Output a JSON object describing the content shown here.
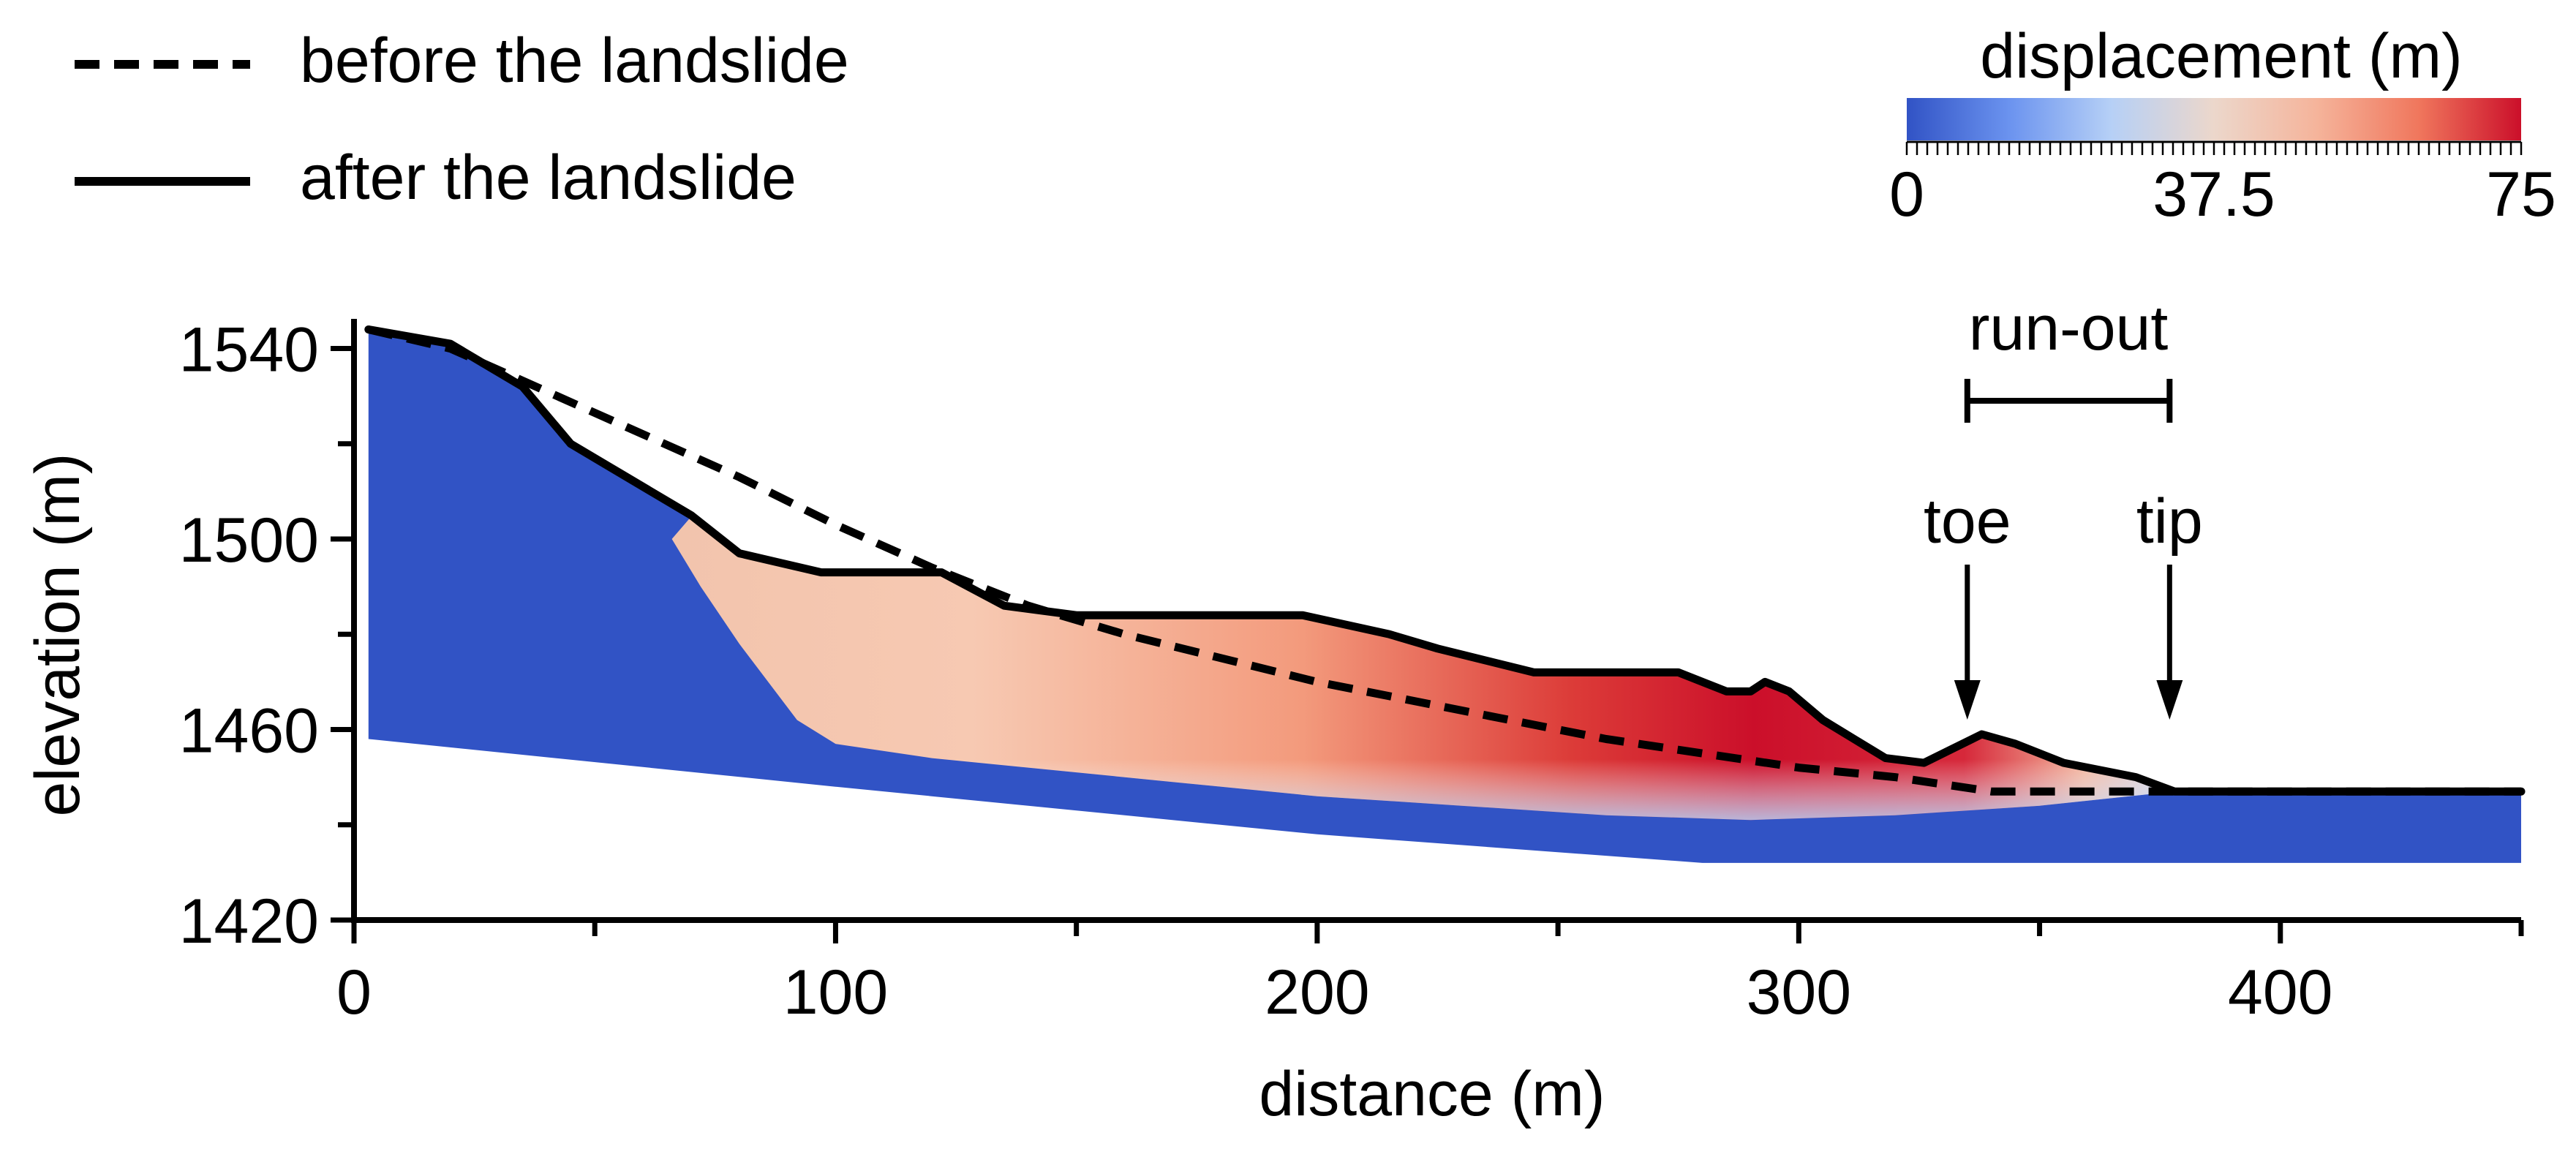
{
  "chart_data": {
    "type": "line",
    "title": "",
    "xlabel": "distance (m)",
    "ylabel": "elevation (m)",
    "xlim": [
      0,
      450
    ],
    "ylim": [
      1420,
      1545
    ],
    "x_ticks": [
      0,
      100,
      200,
      300,
      400
    ],
    "x_tick_labels": [
      "0",
      "100",
      "200",
      "300",
      "400"
    ],
    "x_minor_ticks": [
      50,
      150,
      250,
      350,
      450
    ],
    "y_ticks": [
      1420,
      1460,
      1500,
      1540
    ],
    "y_tick_labels": [
      "1420",
      "1460",
      "1500",
      "1540"
    ],
    "y_minor_ticks": [
      1440,
      1480,
      1520
    ],
    "grid": false,
    "legend_position": "top-left",
    "series": [
      {
        "name": "before the landslide",
        "style": "dashed",
        "color": "#000000",
        "x": [
          3,
          20,
          40,
          60,
          80,
          100,
          120,
          140,
          160,
          180,
          200,
          220,
          240,
          260,
          280,
          300,
          320,
          340,
          360,
          380,
          400,
          420,
          450
        ],
        "y": [
          1544,
          1540,
          1531,
          1522,
          1513,
          1503,
          1494,
          1486,
          1480,
          1475,
          1470,
          1466,
          1462,
          1458,
          1455,
          1452,
          1450,
          1447,
          1447,
          1447,
          1447,
          1447,
          1447
        ]
      },
      {
        "name": "after the landslide",
        "style": "solid",
        "color": "#000000",
        "x": [
          3,
          20,
          35,
          45,
          55,
          70,
          80,
          97,
          122,
          135,
          150,
          170,
          197,
          215,
          225,
          245,
          275,
          280,
          285,
          290,
          293,
          298,
          305,
          318,
          326,
          338,
          345,
          355,
          370,
          378,
          390,
          450
        ],
        "y": [
          1544,
          1541,
          1532,
          1520,
          1514,
          1505,
          1497,
          1493,
          1493,
          1486,
          1484,
          1484,
          1484,
          1480,
          1477,
          1472,
          1472,
          1470,
          1468,
          1468,
          1470,
          1468,
          1462,
          1454,
          1453,
          1459,
          1457,
          1453,
          1450,
          1447,
          1447,
          1447
        ]
      }
    ],
    "colorbar": {
      "title": "displacement (m)",
      "min": 0,
      "max": 75,
      "tick_values": [
        0,
        37.5,
        75
      ],
      "tick_labels": [
        "0",
        "37.5",
        "75"
      ],
      "colormap": [
        "#3153c5",
        "#6b93ef",
        "#b6d0f6",
        "#ecd7cb",
        "#f5b49b",
        "#f0775d",
        "#cb0f2a"
      ]
    },
    "displacement_field": {
      "stable_color": "#3153c5",
      "slide_zone": {
        "x_range": [
          80,
          378
        ],
        "peak_displacement_m": 75,
        "peak_location_x": 280
      },
      "domain_bottom": {
        "x": [
          3,
          100,
          200,
          280,
          400,
          450
        ],
        "y": [
          1458,
          1448,
          1438,
          1432,
          1432,
          1432
        ]
      }
    },
    "annotations": {
      "run_out_label": "run-out",
      "run_out_range_x": [
        335,
        377
      ],
      "toe_label": "toe",
      "toe_x": 335,
      "tip_label": "tip",
      "tip_x": 377
    }
  }
}
